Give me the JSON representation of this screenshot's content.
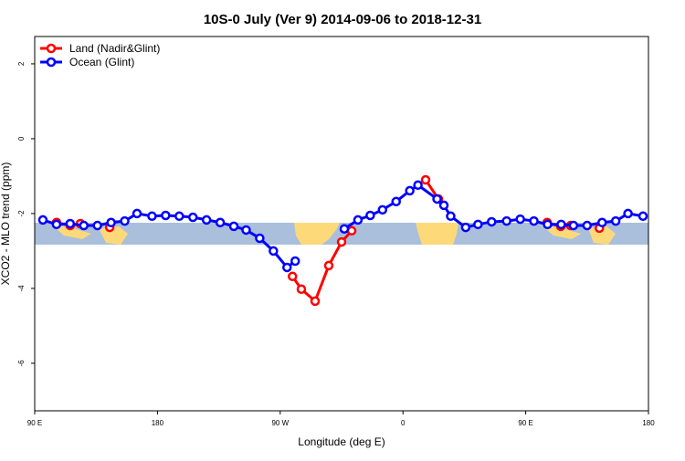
{
  "chart_data": {
    "type": "line",
    "title": "10S-0 July (Ver 9)   2014-09-06 to 2018-12-31",
    "x_label": "Longitude (deg E)",
    "y_label": "XCO2 - MLO trend (ppm)",
    "xlim": [
      90,
      540
    ],
    "xticks": [
      {
        "value": 90,
        "label": "90 E"
      },
      180,
      {
        "value": 270,
        "label": "90 W"
      },
      {
        "value": 360,
        "label": "0"
      },
      {
        "value": 450,
        "label": "90 E"
      },
      {
        "value": 540,
        "label": "180"
      }
    ],
    "ylim": [
      -7.27,
      2.73
    ],
    "yticks": [
      2,
      0,
      -2,
      -4,
      -6
    ],
    "legend": "top-left",
    "series": [
      {
        "name": "Land (Nadir&Glint)",
        "color": "#ff0000",
        "x": [
          106,
          116,
          123.5,
          null,
          145,
          null,
          279,
          285.5,
          295.6,
          305.6,
          315,
          322.4,
          null,
          376.6,
          386,
          null,
          465.7,
          475.7,
          483,
          null,
          504
        ],
        "values": [
          -2.24,
          -2.32,
          -2.27,
          null,
          -2.37,
          null,
          -3.68,
          -4.02,
          -4.34,
          -3.39,
          -2.76,
          -2.46,
          null,
          -1.1,
          -1.61,
          null,
          -2.24,
          -2.34,
          -2.32,
          null,
          -2.39
        ]
      },
      {
        "name": "Ocean (Glint)",
        "color": "#0000ff",
        "x": [
          96,
          106,
          116,
          126,
          136,
          146,
          156,
          165,
          176,
          186,
          196,
          206,
          216,
          226,
          236,
          245,
          255,
          265,
          275,
          281,
          null,
          317,
          327,
          336,
          345,
          355,
          365,
          371,
          385,
          390,
          395,
          406,
          415,
          425,
          436,
          446,
          456,
          466,
          476,
          485,
          495,
          506,
          516,
          525,
          536
        ],
        "values": [
          -2.17,
          -2.29,
          -2.27,
          -2.32,
          -2.32,
          -2.24,
          -2.2,
          -2.0,
          -2.07,
          -2.05,
          -2.07,
          -2.1,
          -2.17,
          -2.24,
          -2.34,
          -2.44,
          -2.66,
          -3.0,
          -3.44,
          -3.27,
          null,
          -2.41,
          -2.17,
          -2.05,
          -1.9,
          -1.68,
          -1.39,
          -1.24,
          -1.61,
          -1.78,
          -2.07,
          -2.37,
          -2.29,
          -2.22,
          -2.2,
          -2.15,
          -2.2,
          -2.29,
          -2.29,
          -2.32,
          -2.32,
          -2.24,
          -2.2,
          -2.0,
          -2.07
        ]
      }
    ]
  }
}
